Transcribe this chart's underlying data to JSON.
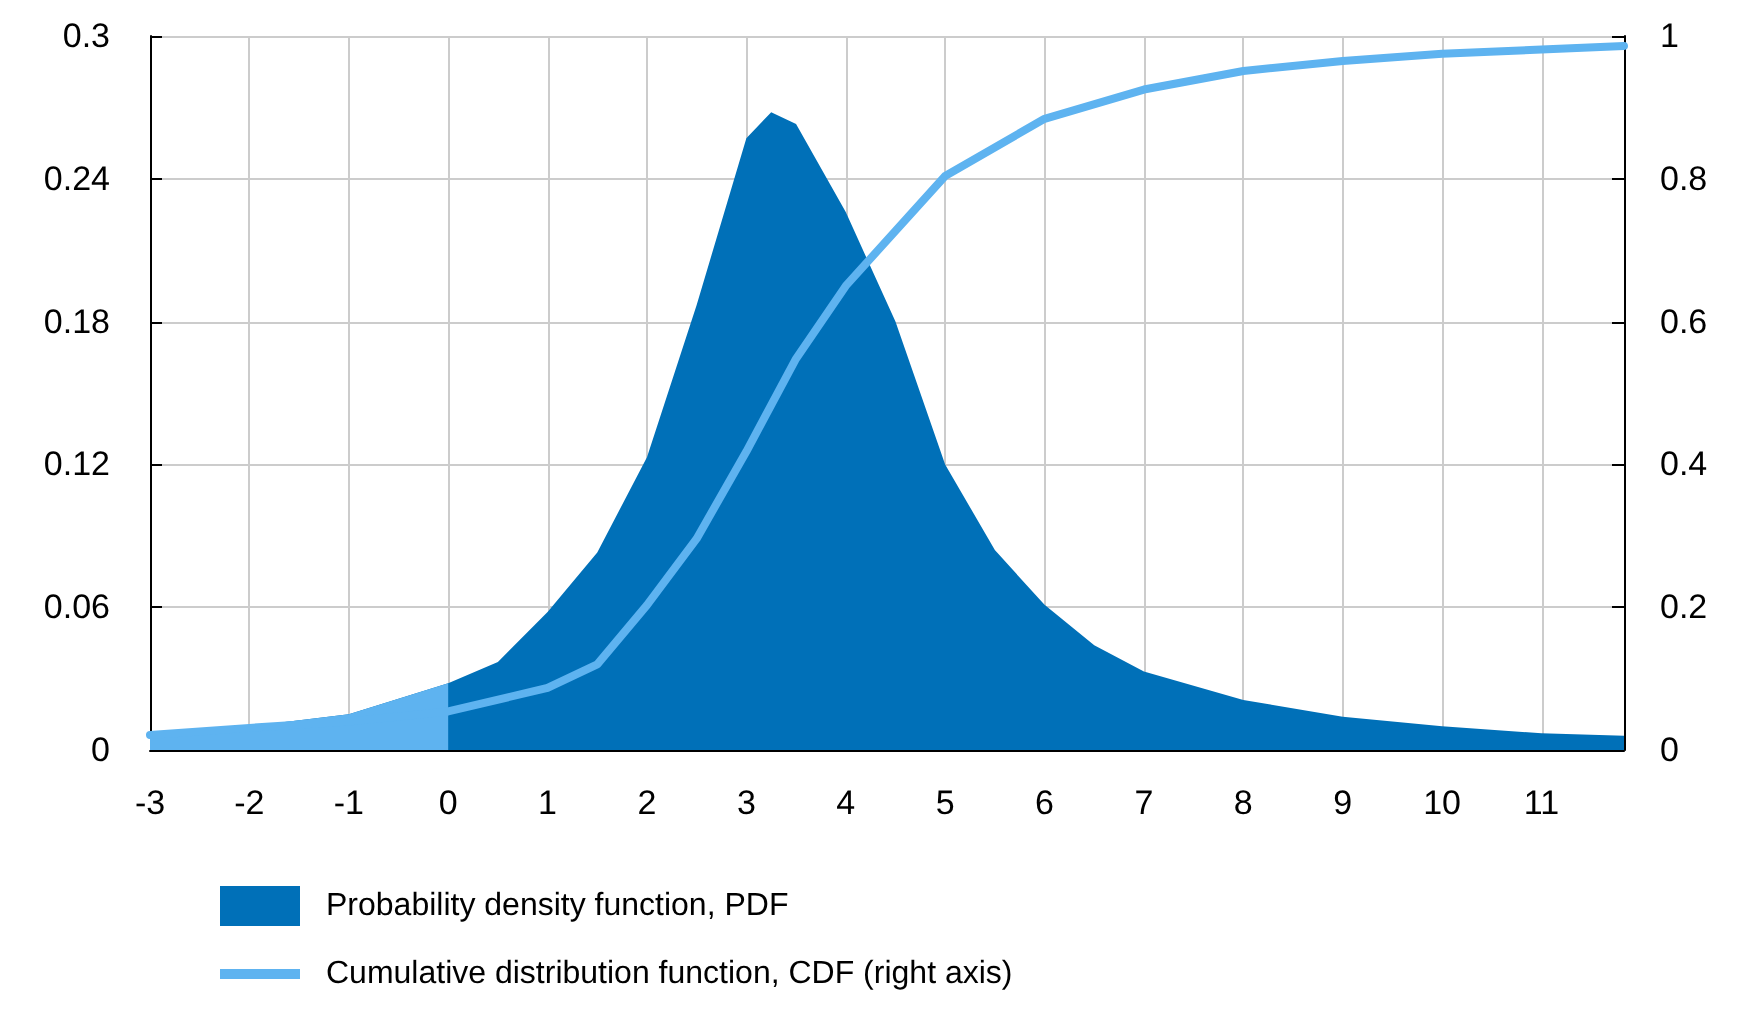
{
  "chart_data": {
    "type": "area",
    "xlim": [
      -3,
      11.83
    ],
    "xticks": [
      -3,
      -2,
      -1,
      0,
      1,
      2,
      3,
      4,
      5,
      6,
      7,
      8,
      9,
      10,
      11
    ],
    "ylim": [
      0,
      0.3
    ],
    "yticks": [
      0,
      0.06,
      0.12,
      0.18,
      0.24,
      0.3
    ],
    "y2lim": [
      0,
      1
    ],
    "y2ticks": [
      0,
      0.2,
      0.4,
      0.6,
      0.8,
      1
    ],
    "grid": true,
    "legend": "bottom",
    "marker": "none",
    "series": [
      {
        "name": "Probability density function, PDF",
        "color": "#0070b8",
        "x": [
          -3,
          -2,
          -1,
          0,
          0.5,
          1,
          1.5,
          2,
          2.5,
          3,
          3.25,
          3.5,
          4,
          4.5,
          5,
          5.5,
          6,
          6.5,
          7,
          8,
          9,
          10,
          11,
          11.83
        ],
        "values": [
          0.006,
          0.01,
          0.015,
          0.028,
          0.037,
          0.058,
          0.083,
          0.123,
          0.187,
          0.257,
          0.268,
          0.263,
          0.226,
          0.18,
          0.12,
          0.084,
          0.061,
          0.044,
          0.033,
          0.021,
          0.014,
          0.01,
          0.007,
          0.006
        ]
      },
      {
        "color": "#5eb3f0",
        "x": [
          -3,
          -2,
          -1,
          0
        ],
        "values": [
          0.006,
          0.01,
          0.015,
          0.028
        ]
      },
      {
        "name": "Cumulative distribution function, CDF (right axis)",
        "type": "line",
        "axis": "y2",
        "color": "#5eb3f0",
        "line_style": "solid",
        "x": [
          -3,
          -2,
          -1,
          0,
          1,
          1.5,
          2,
          2.5,
          3,
          3.5,
          4,
          5,
          6,
          7,
          8,
          9,
          10,
          11,
          11.83
        ],
        "values": [
          0.021,
          0.031,
          0.04,
          0.054,
          0.087,
          0.12,
          0.203,
          0.296,
          0.418,
          0.548,
          0.65,
          0.804,
          0.884,
          0.925,
          0.951,
          0.965,
          0.975,
          0.981,
          0.986
        ]
      }
    ]
  }
}
